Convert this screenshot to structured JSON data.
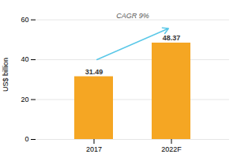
{
  "chart_data": {
    "type": "bar",
    "categories": [
      "2017",
      "2022F"
    ],
    "values": [
      31.49,
      48.37
    ],
    "color": "#F5A623",
    "ylabel": "US$ billion",
    "ylim": [
      0,
      65
    ],
    "yticks": [
      0,
      20,
      40,
      60
    ],
    "grid": true,
    "data_labels": true,
    "annotation": "CAGR 9%"
  }
}
